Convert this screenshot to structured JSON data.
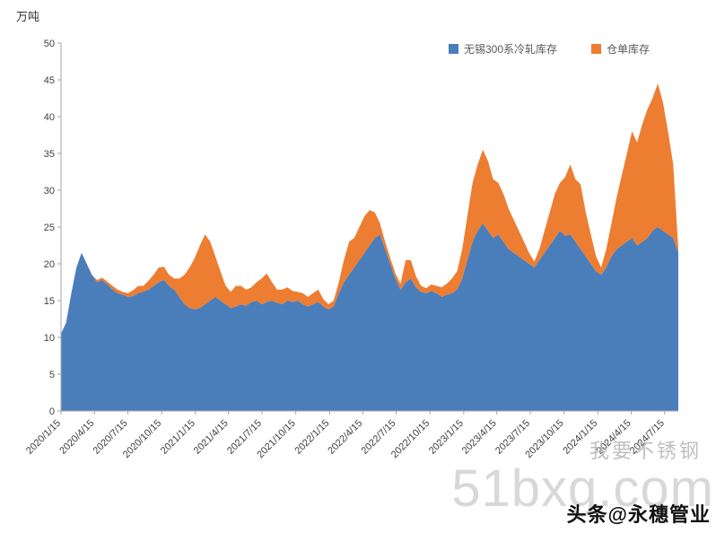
{
  "page": {
    "unit_label": "万吨",
    "watermark_line1": "我要不锈钢",
    "watermark_line2": "51bxg.com",
    "footer_brand": "头条@永穗管业"
  },
  "chart_data": {
    "type": "area",
    "stacked": true,
    "title": "",
    "xlabel": "",
    "ylabel": "万吨",
    "ylim": [
      0,
      50
    ],
    "y_ticks": [
      0,
      5,
      10,
      15,
      20,
      25,
      30,
      35,
      40,
      45,
      50
    ],
    "grid": false,
    "legend_position": "top-right",
    "x_start": "2020/1/15",
    "x_step_days": 14,
    "x_tick_labels": [
      "2020/1/15",
      "2020/4/15",
      "2020/7/15",
      "2020/10/15",
      "2021/1/15",
      "2021/4/15",
      "2021/7/15",
      "2021/10/15",
      "2022/1/15",
      "2022/4/15",
      "2022/7/15",
      "2022/10/15",
      "2023/1/15",
      "2023/4/15",
      "2023/7/15",
      "2023/10/15",
      "2024/1/15",
      "2024/4/15",
      "2024/7/15"
    ],
    "series": [
      {
        "name": "无锡300系冷轧库存",
        "color": "#4a7ebb",
        "values": [
          10.5,
          12,
          16,
          19.5,
          21.5,
          20,
          18.5,
          17.5,
          17.8,
          17.2,
          16.5,
          16,
          15.8,
          15.5,
          15.6,
          16,
          16.2,
          16.5,
          17,
          17.5,
          17.8,
          17,
          16.5,
          15.5,
          14.5,
          14,
          13.8,
          14,
          14.5,
          15,
          15.5,
          15,
          14.5,
          14,
          14.2,
          14.5,
          14.3,
          14.8,
          15,
          14.5,
          14.8,
          15,
          14.7,
          14.5,
          15,
          14.8,
          15,
          14.5,
          14.2,
          14.5,
          14.8,
          14.2,
          13.8,
          14.2,
          16,
          17.5,
          18.5,
          19.5,
          20.5,
          21.5,
          22.5,
          23.5,
          24,
          22,
          20,
          18,
          16.5,
          17.5,
          18,
          16.8,
          16.2,
          16,
          16.3,
          16,
          15.5,
          15.8,
          16,
          16.5,
          18,
          20.5,
          23,
          24.5,
          25.5,
          24.5,
          23.5,
          24,
          23,
          22,
          21.5,
          21,
          20.5,
          20,
          19.5,
          20.5,
          21.5,
          22.5,
          23.5,
          24.5,
          23.8,
          24,
          23,
          22,
          21,
          20,
          19,
          18.5,
          19.5,
          21,
          22,
          22.5,
          23,
          23.5,
          22.5,
          23,
          23.5,
          24.5,
          25,
          24.5,
          24,
          23.5,
          21.5
        ]
      },
      {
        "name": "仓单库存",
        "color": "#ed7d31",
        "values": [
          0,
          0,
          0,
          0,
          0,
          0,
          0,
          0.3,
          0.3,
          0.4,
          0.5,
          0.5,
          0.4,
          0.5,
          0.8,
          1,
          0.8,
          1.2,
          1.5,
          2,
          1.8,
          1.5,
          1.5,
          2.5,
          4,
          5.5,
          7,
          8.5,
          9.5,
          8,
          5.5,
          4,
          2.5,
          2.2,
          2.8,
          2.5,
          2.2,
          2,
          2.5,
          3.5,
          3.9,
          2.5,
          1.8,
          2,
          1.8,
          1.5,
          1.2,
          1.5,
          1.3,
          1.5,
          1.7,
          1,
          0.7,
          0.8,
          1.5,
          3,
          4.5,
          4,
          4.5,
          5,
          4.8,
          3.5,
          1.5,
          1,
          0.8,
          0.7,
          0.8,
          3,
          2.5,
          1.5,
          0.8,
          0.7,
          0.9,
          1,
          1.3,
          1.5,
          2,
          2.5,
          4,
          6,
          8,
          9,
          10,
          9.5,
          8,
          7,
          6.5,
          5.5,
          4.5,
          3.5,
          2.5,
          1.5,
          0.8,
          1.5,
          3,
          4.5,
          6,
          6.5,
          8,
          9.5,
          8.5,
          8.8,
          6,
          4,
          2,
          1,
          2.5,
          4.5,
          7,
          9.5,
          12,
          14.5,
          14,
          16,
          17.5,
          18,
          19.5,
          17.5,
          14,
          10,
          0.5
        ]
      }
    ]
  }
}
